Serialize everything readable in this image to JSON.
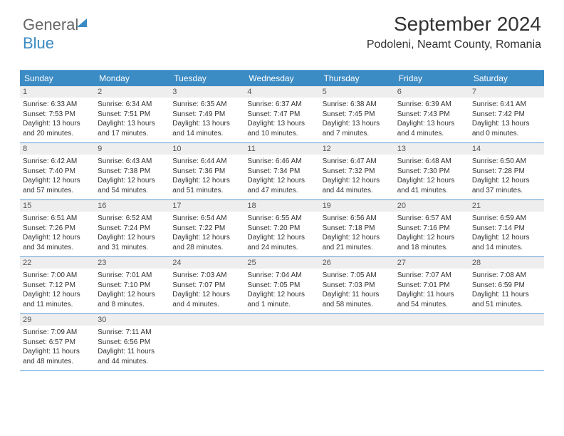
{
  "logo": {
    "part1": "General",
    "part2": "Blue"
  },
  "title": "September 2024",
  "location": "Podoleni, Neamt County, Romania",
  "colors": {
    "accent": "#3b8bc4",
    "header_bar": "#3b8bc4",
    "daynum_bg": "#eeeeee",
    "border": "#5b9bd5"
  },
  "day_headers": [
    "Sunday",
    "Monday",
    "Tuesday",
    "Wednesday",
    "Thursday",
    "Friday",
    "Saturday"
  ],
  "weeks": [
    [
      {
        "n": "1",
        "sunrise": "Sunrise: 6:33 AM",
        "sunset": "Sunset: 7:53 PM",
        "daylight": "Daylight: 13 hours and 20 minutes."
      },
      {
        "n": "2",
        "sunrise": "Sunrise: 6:34 AM",
        "sunset": "Sunset: 7:51 PM",
        "daylight": "Daylight: 13 hours and 17 minutes."
      },
      {
        "n": "3",
        "sunrise": "Sunrise: 6:35 AM",
        "sunset": "Sunset: 7:49 PM",
        "daylight": "Daylight: 13 hours and 14 minutes."
      },
      {
        "n": "4",
        "sunrise": "Sunrise: 6:37 AM",
        "sunset": "Sunset: 7:47 PM",
        "daylight": "Daylight: 13 hours and 10 minutes."
      },
      {
        "n": "5",
        "sunrise": "Sunrise: 6:38 AM",
        "sunset": "Sunset: 7:45 PM",
        "daylight": "Daylight: 13 hours and 7 minutes."
      },
      {
        "n": "6",
        "sunrise": "Sunrise: 6:39 AM",
        "sunset": "Sunset: 7:43 PM",
        "daylight": "Daylight: 13 hours and 4 minutes."
      },
      {
        "n": "7",
        "sunrise": "Sunrise: 6:41 AM",
        "sunset": "Sunset: 7:42 PM",
        "daylight": "Daylight: 13 hours and 0 minutes."
      }
    ],
    [
      {
        "n": "8",
        "sunrise": "Sunrise: 6:42 AM",
        "sunset": "Sunset: 7:40 PM",
        "daylight": "Daylight: 12 hours and 57 minutes."
      },
      {
        "n": "9",
        "sunrise": "Sunrise: 6:43 AM",
        "sunset": "Sunset: 7:38 PM",
        "daylight": "Daylight: 12 hours and 54 minutes."
      },
      {
        "n": "10",
        "sunrise": "Sunrise: 6:44 AM",
        "sunset": "Sunset: 7:36 PM",
        "daylight": "Daylight: 12 hours and 51 minutes."
      },
      {
        "n": "11",
        "sunrise": "Sunrise: 6:46 AM",
        "sunset": "Sunset: 7:34 PM",
        "daylight": "Daylight: 12 hours and 47 minutes."
      },
      {
        "n": "12",
        "sunrise": "Sunrise: 6:47 AM",
        "sunset": "Sunset: 7:32 PM",
        "daylight": "Daylight: 12 hours and 44 minutes."
      },
      {
        "n": "13",
        "sunrise": "Sunrise: 6:48 AM",
        "sunset": "Sunset: 7:30 PM",
        "daylight": "Daylight: 12 hours and 41 minutes."
      },
      {
        "n": "14",
        "sunrise": "Sunrise: 6:50 AM",
        "sunset": "Sunset: 7:28 PM",
        "daylight": "Daylight: 12 hours and 37 minutes."
      }
    ],
    [
      {
        "n": "15",
        "sunrise": "Sunrise: 6:51 AM",
        "sunset": "Sunset: 7:26 PM",
        "daylight": "Daylight: 12 hours and 34 minutes."
      },
      {
        "n": "16",
        "sunrise": "Sunrise: 6:52 AM",
        "sunset": "Sunset: 7:24 PM",
        "daylight": "Daylight: 12 hours and 31 minutes."
      },
      {
        "n": "17",
        "sunrise": "Sunrise: 6:54 AM",
        "sunset": "Sunset: 7:22 PM",
        "daylight": "Daylight: 12 hours and 28 minutes."
      },
      {
        "n": "18",
        "sunrise": "Sunrise: 6:55 AM",
        "sunset": "Sunset: 7:20 PM",
        "daylight": "Daylight: 12 hours and 24 minutes."
      },
      {
        "n": "19",
        "sunrise": "Sunrise: 6:56 AM",
        "sunset": "Sunset: 7:18 PM",
        "daylight": "Daylight: 12 hours and 21 minutes."
      },
      {
        "n": "20",
        "sunrise": "Sunrise: 6:57 AM",
        "sunset": "Sunset: 7:16 PM",
        "daylight": "Daylight: 12 hours and 18 minutes."
      },
      {
        "n": "21",
        "sunrise": "Sunrise: 6:59 AM",
        "sunset": "Sunset: 7:14 PM",
        "daylight": "Daylight: 12 hours and 14 minutes."
      }
    ],
    [
      {
        "n": "22",
        "sunrise": "Sunrise: 7:00 AM",
        "sunset": "Sunset: 7:12 PM",
        "daylight": "Daylight: 12 hours and 11 minutes."
      },
      {
        "n": "23",
        "sunrise": "Sunrise: 7:01 AM",
        "sunset": "Sunset: 7:10 PM",
        "daylight": "Daylight: 12 hours and 8 minutes."
      },
      {
        "n": "24",
        "sunrise": "Sunrise: 7:03 AM",
        "sunset": "Sunset: 7:07 PM",
        "daylight": "Daylight: 12 hours and 4 minutes."
      },
      {
        "n": "25",
        "sunrise": "Sunrise: 7:04 AM",
        "sunset": "Sunset: 7:05 PM",
        "daylight": "Daylight: 12 hours and 1 minute."
      },
      {
        "n": "26",
        "sunrise": "Sunrise: 7:05 AM",
        "sunset": "Sunset: 7:03 PM",
        "daylight": "Daylight: 11 hours and 58 minutes."
      },
      {
        "n": "27",
        "sunrise": "Sunrise: 7:07 AM",
        "sunset": "Sunset: 7:01 PM",
        "daylight": "Daylight: 11 hours and 54 minutes."
      },
      {
        "n": "28",
        "sunrise": "Sunrise: 7:08 AM",
        "sunset": "Sunset: 6:59 PM",
        "daylight": "Daylight: 11 hours and 51 minutes."
      }
    ],
    [
      {
        "n": "29",
        "sunrise": "Sunrise: 7:09 AM",
        "sunset": "Sunset: 6:57 PM",
        "daylight": "Daylight: 11 hours and 48 minutes."
      },
      {
        "n": "30",
        "sunrise": "Sunrise: 7:11 AM",
        "sunset": "Sunset: 6:56 PM",
        "daylight": "Daylight: 11 hours and 44 minutes."
      },
      {
        "empty": true
      },
      {
        "empty": true
      },
      {
        "empty": true
      },
      {
        "empty": true
      },
      {
        "empty": true
      }
    ]
  ]
}
